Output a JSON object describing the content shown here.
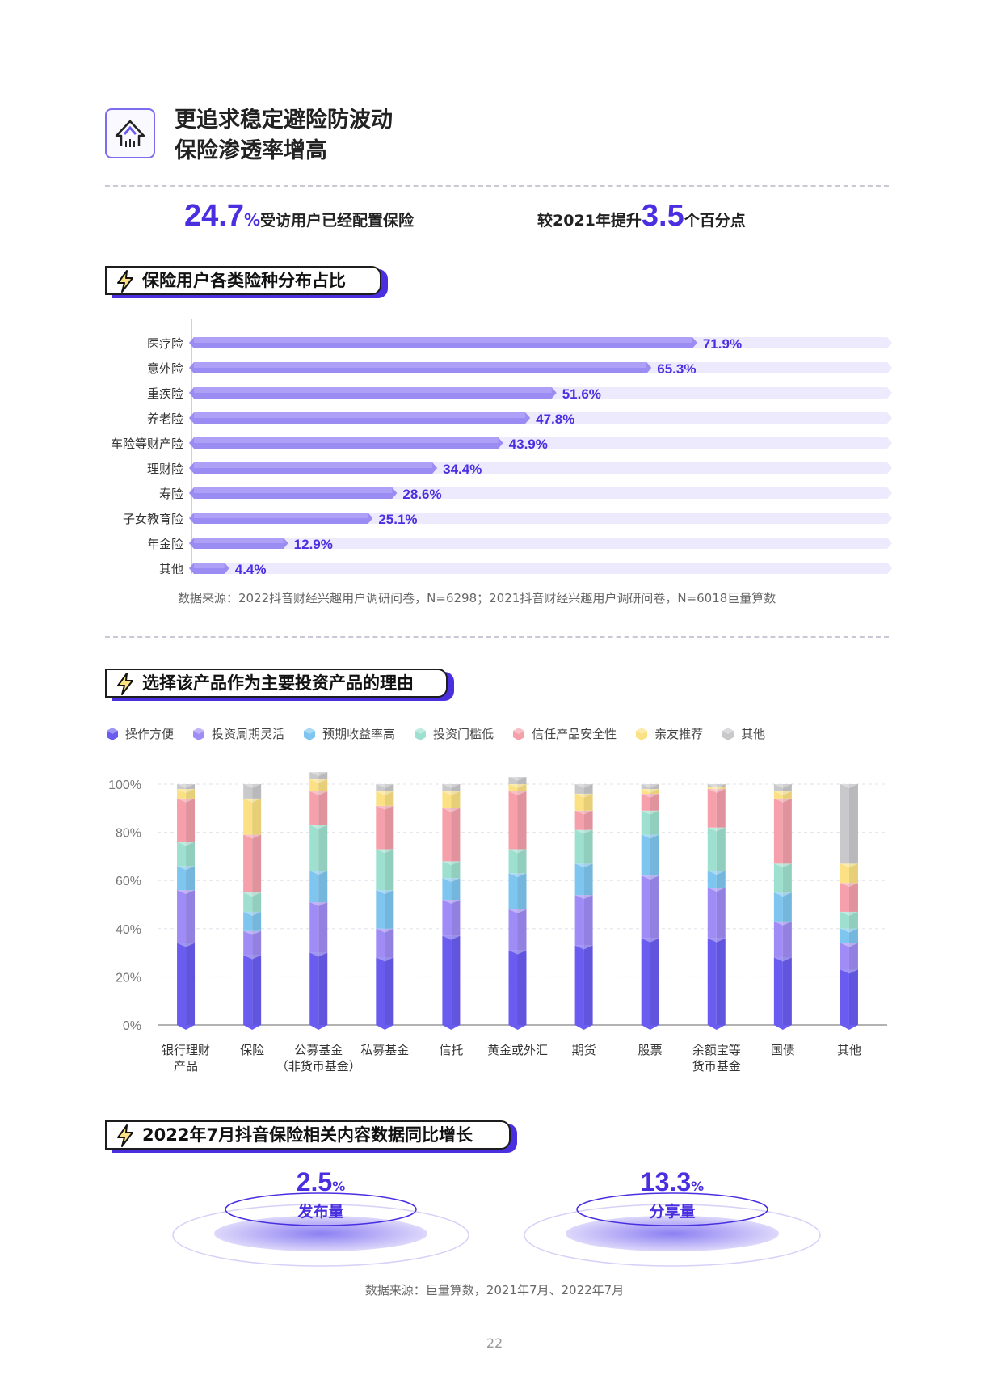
{
  "header": {
    "title_line1": "更追求稳定避险防波动",
    "title_line2": "保险渗透率增高",
    "icon": "arrows-up-icon"
  },
  "stats": {
    "left_value": "24.7",
    "left_unit": "%",
    "left_text": "受访用户已经配置保险",
    "right_prefix": "较2021年提升",
    "right_value": "3.5",
    "right_suffix": "个百分点"
  },
  "section1": {
    "title": "保险用户各类险种分布占比",
    "icon": "lightning-icon",
    "source": "数据来源：2022抖音财经兴趣用户调研问卷，N=6298；2021抖音财经兴趣用户调研问卷，N=6018巨量算数"
  },
  "section2": {
    "title": "选择该产品作为主要投资产品的理由",
    "icon": "lightning-icon"
  },
  "section3": {
    "title": "2022年7月抖音保险相关内容数据同比增长",
    "icon": "lightning-icon",
    "items": [
      {
        "value": "2.5",
        "unit": "%",
        "label": "发布量"
      },
      {
        "value": "13.3",
        "unit": "%",
        "label": "分享量"
      }
    ],
    "source": "数据来源：巨量算数，2021年7月、2022年7月"
  },
  "page_number": "22",
  "colors": {
    "accent": "#4a2fe0",
    "bar": "#9b8cf4",
    "track": "#eeeafd"
  },
  "chart_data": [
    {
      "type": "bar",
      "orientation": "horizontal",
      "categories": [
        "医疗险",
        "意外险",
        "重疾险",
        "养老险",
        "车险等财产险",
        "理财险",
        "寿险",
        "子女教育险",
        "年金险",
        "其他"
      ],
      "values": [
        71.9,
        65.3,
        51.6,
        47.8,
        43.9,
        34.4,
        28.6,
        25.1,
        12.9,
        4.4
      ],
      "value_labels": [
        "71.9%",
        "65.3%",
        "51.6%",
        "47.8%",
        "43.9%",
        "34.4%",
        "28.6%",
        "25.1%",
        "12.9%",
        "4.4%"
      ],
      "xlim": [
        0,
        100
      ]
    },
    {
      "type": "bar",
      "stacked": true,
      "categories": [
        "银行理财\n产品",
        "保险",
        "公募基金\n（非货币基金）",
        "私募基金",
        "信托",
        "黄金或外汇",
        "期货",
        "股票",
        "余额宝等\n货币基金",
        "国债",
        "其他"
      ],
      "y_ticks": [
        "0%",
        "20%",
        "40%",
        "60%",
        "80%",
        "100%"
      ],
      "ylim": [
        0,
        100
      ],
      "legend_position": "top",
      "series": [
        {
          "name": "操作方便",
          "color": "#6a5cf0",
          "values": [
            34,
            29,
            30,
            28,
            37,
            31,
            33,
            36,
            36,
            28,
            23
          ]
        },
        {
          "name": "投资周期灵活",
          "color": "#a08cf6",
          "values": [
            22,
            10,
            21,
            12,
            15,
            17,
            21,
            26,
            21,
            15,
            11
          ]
        },
        {
          "name": "预期收益率高",
          "color": "#7ec6ef",
          "values": [
            10,
            8,
            13,
            16,
            9,
            15,
            13,
            17,
            7,
            12,
            6
          ]
        },
        {
          "name": "投资门槛低",
          "color": "#9ee0cf",
          "values": [
            10,
            8,
            19,
            17,
            7,
            10,
            14,
            10,
            18,
            12,
            7
          ]
        },
        {
          "name": "信任产品安全性",
          "color": "#f5a0ab",
          "values": [
            18,
            24,
            14,
            18,
            22,
            24,
            8,
            7,
            16,
            27,
            12
          ]
        },
        {
          "name": "亲友推荐",
          "color": "#fbe183",
          "values": [
            4,
            15,
            5,
            6,
            7,
            3,
            7,
            2,
            1,
            3,
            8
          ]
        },
        {
          "name": "其他",
          "color": "#c9c9cc",
          "values": [
            2,
            6,
            3,
            3,
            3,
            3,
            4,
            2,
            1,
            3,
            33
          ]
        }
      ]
    }
  ]
}
